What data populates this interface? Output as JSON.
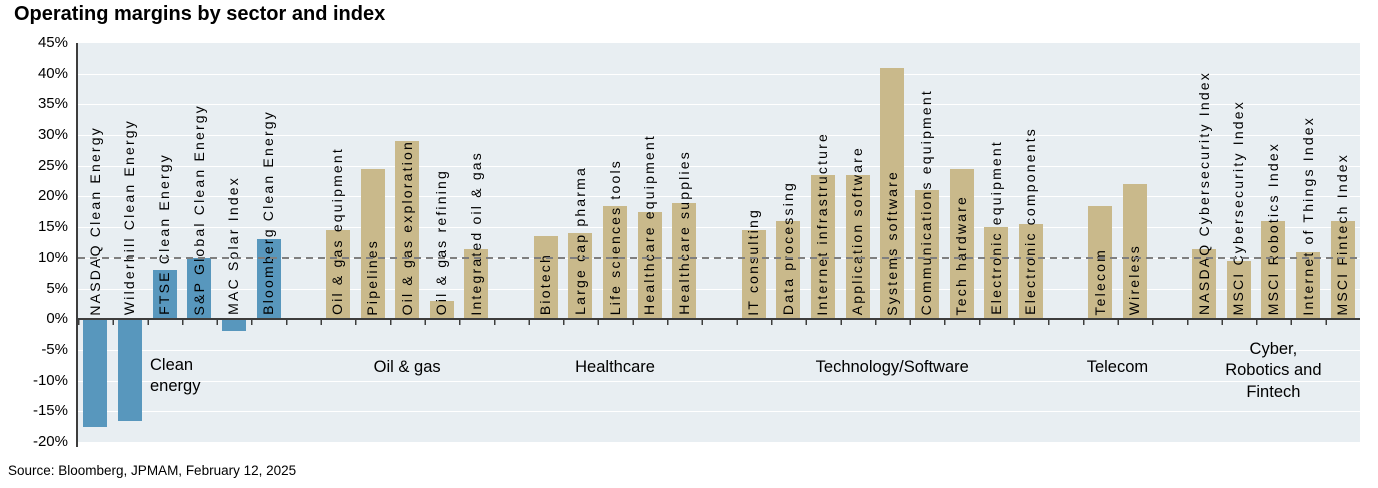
{
  "title": "Operating margins by sector and index",
  "source": "Source: Bloomberg, JPMAM, February 12, 2025",
  "colors": {
    "clean_energy_bar": "#5897BD",
    "sector_bar": "#C9B98B",
    "plot_background": "#E8EEF2",
    "gridline": "#FFFFFF",
    "reference_line": "#7F7F7F",
    "axis": "#3D3D3D"
  },
  "chart_data": {
    "type": "bar",
    "title": "Operating margins by sector and index",
    "xlabel": "",
    "ylabel": "",
    "ylim": [
      -20,
      45
    ],
    "ytick_step": 5,
    "ytick_labels": [
      "45%",
      "40%",
      "35%",
      "30%",
      "25%",
      "20%",
      "15%",
      "10%",
      "5%",
      "0%",
      "-5%",
      "-10%",
      "-15%",
      "-20%"
    ],
    "grid": true,
    "legend": "none",
    "reference_line_value": 10,
    "reference_line_style": "dashed",
    "groups": [
      {
        "label": "Clean\nenergy",
        "color": "#5897BD",
        "bars": [
          {
            "name": "NASDAQ Clean Energy",
            "value": -17.5
          },
          {
            "name": "Wilderhill Clean Energy",
            "value": -16.5
          },
          {
            "name": "FTSE Clean Energy",
            "value": 8
          },
          {
            "name": "S&P Global Clean Energy",
            "value": 10
          },
          {
            "name": "MAC Solar Index",
            "value": -2
          },
          {
            "name": "Bloomberg Clean Energy",
            "value": 13
          }
        ]
      },
      {
        "label": "Oil & gas",
        "color": "#C9B98B",
        "bars": [
          {
            "name": "Oil & gas equipment",
            "value": 14.5
          },
          {
            "name": "Pipelines",
            "value": 24.5
          },
          {
            "name": "Oil & gas exploration",
            "value": 29
          },
          {
            "name": "Oil & gas refining",
            "value": 3
          },
          {
            "name": "Integrated oil & gas",
            "value": 11.5
          }
        ]
      },
      {
        "label": "Healthcare",
        "color": "#C9B98B",
        "bars": [
          {
            "name": "Biotech",
            "value": 13.5
          },
          {
            "name": "Large cap pharma",
            "value": 14
          },
          {
            "name": "Life sciences tools",
            "value": 18.5
          },
          {
            "name": "Healthcare equipment",
            "value": 17.5
          },
          {
            "name": "Healthcare supplies",
            "value": 19
          }
        ]
      },
      {
        "label": "Technology/Software",
        "color": "#C9B98B",
        "bars": [
          {
            "name": "IT consulting",
            "value": 14.5
          },
          {
            "name": "Data processing",
            "value": 16
          },
          {
            "name": "Internet infrastructure",
            "value": 23.5
          },
          {
            "name": "Application software",
            "value": 23.5
          },
          {
            "name": "Systems software",
            "value": 41
          },
          {
            "name": "Communications equipment",
            "value": 21
          },
          {
            "name": "Tech hardware",
            "value": 24.5
          },
          {
            "name": "Electronic equipment",
            "value": 15
          },
          {
            "name": "Electronic components",
            "value": 15.5
          }
        ]
      },
      {
        "label": "Telecom",
        "color": "#C9B98B",
        "bars": [
          {
            "name": "Telecom",
            "value": 18.5
          },
          {
            "name": "Wireless",
            "value": 22
          }
        ]
      },
      {
        "label": "Cyber,\nRobotics and\nFintech",
        "color": "#C9B98B",
        "bars": [
          {
            "name": "NASDAQ Cybersecurity Index",
            "value": 11.5
          },
          {
            "name": "MSCI Cybersecurity Index",
            "value": 9.5
          },
          {
            "name": "MSCI Robotics Index",
            "value": 16
          },
          {
            "name": "Internet of Things Index",
            "value": 11
          },
          {
            "name": "MSCI Fintech Index",
            "value": 16
          }
        ]
      }
    ]
  }
}
